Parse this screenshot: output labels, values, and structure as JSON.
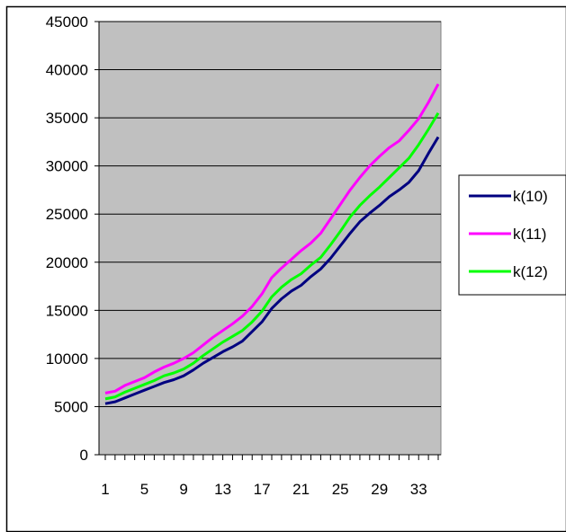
{
  "chart_data": {
    "type": "line",
    "title": "",
    "xlabel": "",
    "ylabel": "",
    "x": [
      1,
      2,
      3,
      4,
      5,
      6,
      7,
      8,
      9,
      10,
      11,
      12,
      13,
      14,
      15,
      16,
      17,
      18,
      19,
      20,
      21,
      22,
      23,
      24,
      25,
      26,
      27,
      28,
      29,
      30,
      31,
      32,
      33,
      34,
      35
    ],
    "x_tick_labels": [
      "1",
      "5",
      "9",
      "13",
      "17",
      "21",
      "25",
      "29",
      "33"
    ],
    "x_tick_values": [
      1,
      5,
      9,
      13,
      17,
      21,
      25,
      29,
      33
    ],
    "ylim": [
      0,
      45000
    ],
    "y_ticks": [
      0,
      5000,
      10000,
      15000,
      20000,
      25000,
      30000,
      35000,
      40000,
      45000
    ],
    "y_tick_labels": [
      "0",
      "5000",
      "10000",
      "15000",
      "20000",
      "25000",
      "30000",
      "35000",
      "40000",
      "45000"
    ],
    "grid": "horizontal",
    "plot_background": "#C0C0C0",
    "legend_position": "right",
    "series": [
      {
        "name": "k(10)",
        "color": "#000080",
        "values": [
          5300,
          5500,
          5900,
          6300,
          6700,
          7100,
          7500,
          7800,
          8200,
          8800,
          9500,
          10100,
          10700,
          11200,
          11800,
          12800,
          13800,
          15200,
          16200,
          17000,
          17600,
          18500,
          19300,
          20400,
          21700,
          23000,
          24200,
          25100,
          25900,
          26800,
          27500,
          28300,
          29500,
          31300,
          33000
        ]
      },
      {
        "name": "k(11)",
        "color": "#FF00FF",
        "values": [
          6400,
          6600,
          7200,
          7600,
          8000,
          8600,
          9100,
          9500,
          10000,
          10600,
          11400,
          12200,
          12900,
          13600,
          14400,
          15400,
          16700,
          18400,
          19400,
          20300,
          21200,
          22000,
          23000,
          24500,
          26000,
          27500,
          28800,
          30000,
          31000,
          31900,
          32600,
          33700,
          34900,
          36600,
          38500
        ]
      },
      {
        "name": "k(12)",
        "color": "#00FF00",
        "values": [
          5800,
          6000,
          6500,
          6900,
          7300,
          7700,
          8200,
          8500,
          8900,
          9500,
          10300,
          11000,
          11700,
          12300,
          12900,
          13800,
          14900,
          16400,
          17400,
          18200,
          18800,
          19700,
          20500,
          21800,
          23200,
          24700,
          25900,
          26900,
          27800,
          28800,
          29800,
          30800,
          32200,
          33800,
          35500
        ]
      }
    ]
  }
}
